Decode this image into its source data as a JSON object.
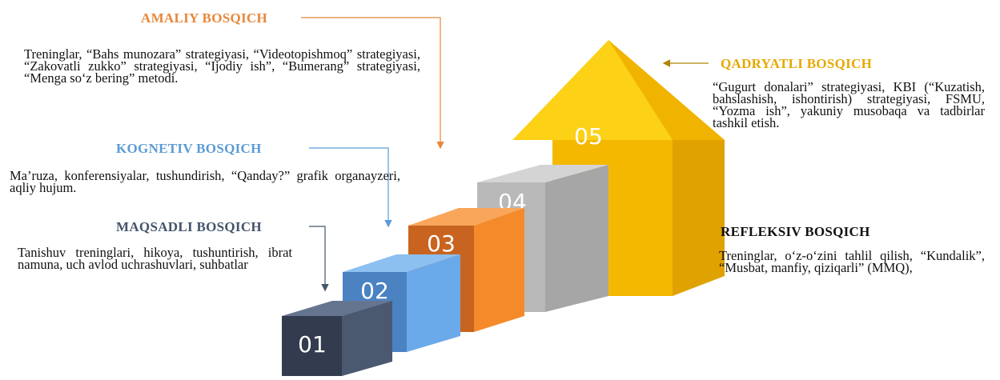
{
  "stages": [
    {
      "number": "01",
      "title": "MAQSADLI BOSQICH",
      "text": "Tanishuv treninglari, hikoya, tushuntirish, ibrat namuna, uch avlod uchrashuvlari, suhbatlar"
    },
    {
      "number": "02",
      "title": "KOGNETIV BOSQICH",
      "text": "Ma’ruza, konferensiyalar, tushundirish, “Qanday?” grafik organayzeri, aqliy hujum."
    },
    {
      "number": "03",
      "title": "AMALIY BOSQICH",
      "text": "Treninglar, “Bahs munozara” strategiyasi, “Videotopishmoq” strategiyasi, “Zakovatli zukko” strategiyasi, “Ijodiy ish”, “Bumerang” strategiyasi, “Menga so‘z bering” metodi."
    },
    {
      "number": "04",
      "title": "REFLEKSIV BOSQICH",
      "text": "Treninglar, o‘z-o‘zini tahlil qilish, “Kundalik”, “Musbat, manfiy, qiziqarli” (MMQ),"
    },
    {
      "number": "05",
      "title": "QADRYATLI BOSQICH",
      "text": "“Gugurt donalari” strategiyasi, KBI (“Kuzatish, bahslashish, ishontirish) strategiyasi, FSMU, “Yozma ish”, yakuniy musobaqa va tadbirlar tashkil etish."
    }
  ]
}
